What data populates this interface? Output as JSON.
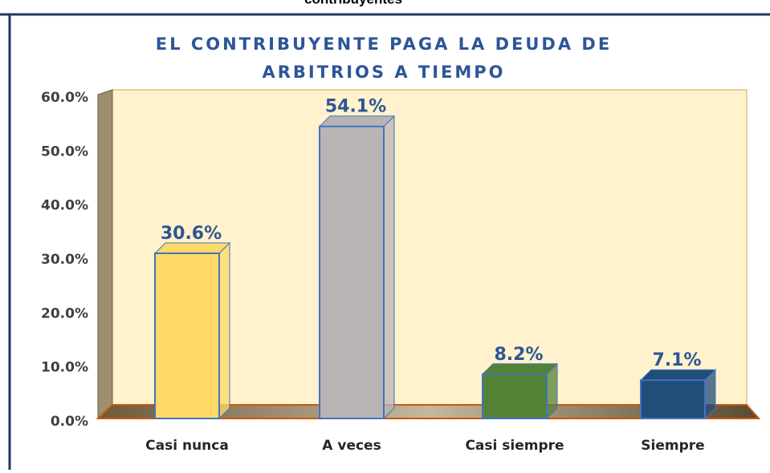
{
  "caption": "contribuyentes",
  "chart_data": {
    "type": "bar3d",
    "title": [
      "EL CONTRIBUYENTE PAGA LA DEUDA DE",
      "ARBITRIOS A TIEMPO"
    ],
    "categories": [
      "Casi nunca",
      "A veces",
      "Casi siempre",
      "Siempre"
    ],
    "values": [
      30.6,
      54.1,
      8.2,
      7.1
    ],
    "value_labels": [
      "30.6%",
      "54.1%",
      "8.2%",
      "7.1%"
    ],
    "colors": [
      "#ffd966",
      "#b8b4b4",
      "#548235",
      "#1f4e79"
    ],
    "ylim": [
      0,
      60
    ],
    "yticks": [
      {
        "value": 0,
        "label": "0.0%"
      },
      {
        "value": 10,
        "label": "10.0%"
      },
      {
        "value": 20,
        "label": "20.0%"
      },
      {
        "value": 30,
        "label": "30.0%"
      },
      {
        "value": 40,
        "label": "40.0%"
      },
      {
        "value": 50,
        "label": "50.0%"
      },
      {
        "value": 60,
        "label": "60.0%"
      }
    ]
  }
}
